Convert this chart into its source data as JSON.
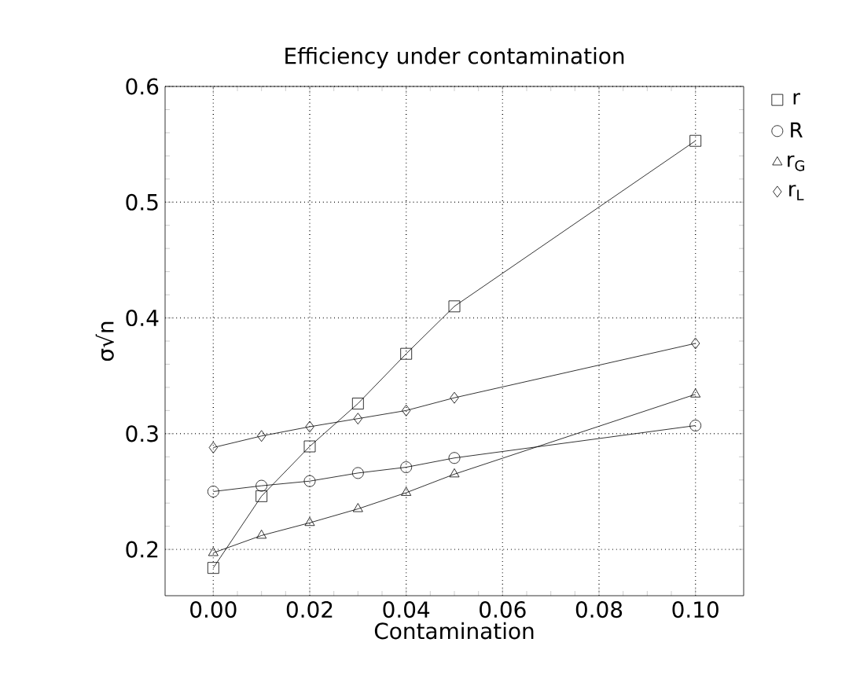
{
  "chart_data": {
    "type": "line",
    "title": "Efficiency under contamination",
    "xlabel": "Contamination",
    "ylabel": "σ√n",
    "x": [
      0.0,
      0.01,
      0.02,
      0.03,
      0.04,
      0.05,
      0.1
    ],
    "series": [
      {
        "name": "r",
        "color": "#000000",
        "marker": "square",
        "values": [
          0.184,
          0.246,
          0.289,
          0.326,
          0.369,
          0.41,
          0.553
        ]
      },
      {
        "name": "R",
        "color": "#000000",
        "marker": "circle",
        "values": [
          0.25,
          0.255,
          0.259,
          0.266,
          0.271,
          0.279,
          0.307
        ]
      },
      {
        "name": "r$_{G}$",
        "color": "#000000",
        "marker": "triangle",
        "values": [
          0.197,
          0.212,
          0.223,
          0.235,
          0.249,
          0.265,
          0.334
        ]
      },
      {
        "name": "r$_{L}$",
        "color": "#000000",
        "marker": "diamond",
        "values": [
          0.288,
          0.298,
          0.306,
          0.313,
          0.32,
          0.331,
          0.378
        ]
      }
    ],
    "xlim": [
      -0.01,
      0.11
    ],
    "ylim": [
      0.16,
      0.6
    ],
    "xticks": [
      {
        "value": 0.0,
        "label": "0.00"
      },
      {
        "value": 0.02,
        "label": "0.02"
      },
      {
        "value": 0.04,
        "label": "0.04"
      },
      {
        "value": 0.06,
        "label": "0.06"
      },
      {
        "value": 0.08,
        "label": "0.08"
      },
      {
        "value": 0.1,
        "label": "0.10"
      }
    ],
    "yticks": [
      0.2,
      0.3,
      0.4,
      0.5,
      0.6
    ],
    "grid": true,
    "legend": "right",
    "line_style": "solid"
  }
}
